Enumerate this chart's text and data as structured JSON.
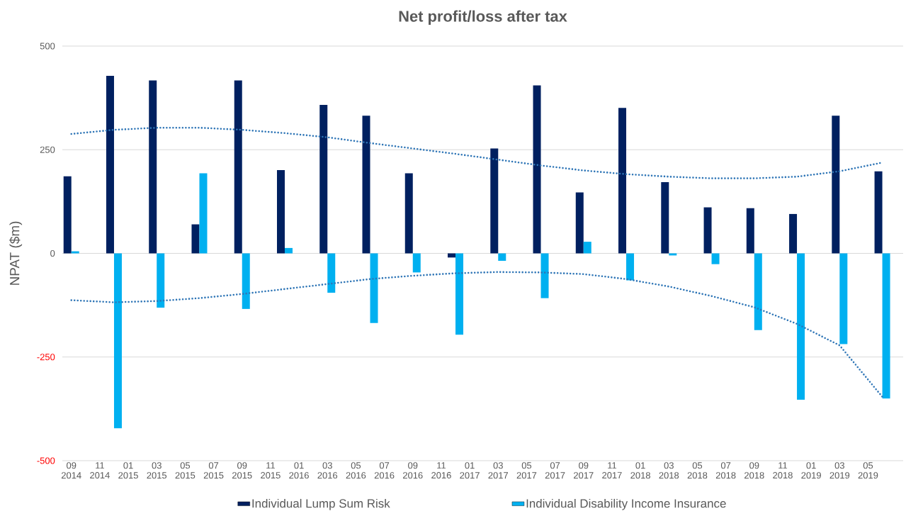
{
  "chart_data": {
    "type": "bar",
    "title": "Net profit/loss after tax",
    "ylabel": "NPAT ($m)",
    "x": [
      "2014-09",
      "2014-12",
      "2015-03",
      "2015-06",
      "2015-09",
      "2015-12",
      "2016-03",
      "2016-06",
      "2016-09",
      "2016-12",
      "2017-03",
      "2017-06",
      "2017-09",
      "2017-12",
      "2018-03",
      "2018-06",
      "2018-09",
      "2018-12",
      "2019-03",
      "2019-06"
    ],
    "series": [
      {
        "name": "Individual Lump Sum Risk",
        "color": "#002060",
        "values": [
          186,
          428,
          417,
          70,
          417,
          201,
          358,
          332,
          193,
          -10,
          253,
          405,
          147,
          351,
          172,
          111,
          109,
          95,
          332,
          198
        ]
      },
      {
        "name": "Individual Disability Income Insurance",
        "color": "#00b0f0",
        "values": [
          5,
          -422,
          -131,
          193,
          -134,
          13,
          -95,
          -168,
          -46,
          -196,
          -18,
          -108,
          28,
          -65,
          -5,
          -26,
          -185,
          -353,
          -219,
          -350
        ]
      },
      {
        "type": "line",
        "color": "#2e75b6",
        "line_style": "dotted",
        "x": [
          "2014-09",
          "2014-12",
          "2015-03",
          "2015-06",
          "2015-09",
          "2015-12",
          "2016-03",
          "2016-06",
          "2016-09",
          "2016-12",
          "2017-03",
          "2017-06",
          "2017-09",
          "2017-12",
          "2018-03",
          "2018-06",
          "2018-09",
          "2018-12",
          "2019-03",
          "2019-06"
        ],
        "values": [
          288,
          298,
          303,
          303,
          298,
          290,
          280,
          266,
          253,
          240,
          226,
          212,
          200,
          191,
          185,
          181,
          181,
          185,
          198,
          219
        ]
      },
      {
        "type": "line",
        "color": "#2e75b6",
        "line_style": "dotted",
        "x": [
          "2014-09",
          "2014-12",
          "2015-03",
          "2015-06",
          "2015-09",
          "2015-12",
          "2016-03",
          "2016-06",
          "2016-09",
          "2016-12",
          "2017-03",
          "2017-06",
          "2017-09",
          "2017-12",
          "2018-03",
          "2018-06",
          "2018-09",
          "2018-12",
          "2019-03",
          "2019-06"
        ],
        "values": [
          -113,
          -118,
          -115,
          -108,
          -98,
          -86,
          -74,
          -62,
          -54,
          -48,
          -45,
          -46,
          -50,
          -62,
          -80,
          -103,
          -130,
          -170,
          -222,
          -346
        ]
      }
    ],
    "xlim": [
      "2014-08-12",
      "2019-07-15"
    ],
    "xticks": [
      {
        "value": "2014-09",
        "label": "09 2014"
      },
      {
        "value": "2014-11",
        "label": "11 2014"
      },
      {
        "value": "2015-01",
        "label": "01 2015"
      },
      {
        "value": "2015-03",
        "label": "03 2015"
      },
      {
        "value": "2015-05",
        "label": "05 2015"
      },
      {
        "value": "2015-07",
        "label": "07 2015"
      },
      {
        "value": "2015-09",
        "label": "09 2015"
      },
      {
        "value": "2015-11",
        "label": "11 2015"
      },
      {
        "value": "2016-01",
        "label": "01 2016"
      },
      {
        "value": "2016-03",
        "label": "03 2016"
      },
      {
        "value": "2016-05",
        "label": "05 2016"
      },
      {
        "value": "2016-07",
        "label": "07 2016"
      },
      {
        "value": "2016-09",
        "label": "09 2016"
      },
      {
        "value": "2016-11",
        "label": "11 2016"
      },
      {
        "value": "2017-01",
        "label": "01 2017"
      },
      {
        "value": "2017-03",
        "label": "03 2017"
      },
      {
        "value": "2017-05",
        "label": "05 2017"
      },
      {
        "value": "2017-07",
        "label": "07 2017"
      },
      {
        "value": "2017-09",
        "label": "09 2017"
      },
      {
        "value": "2017-11",
        "label": "11 2017"
      },
      {
        "value": "2018-01",
        "label": "01 2018"
      },
      {
        "value": "2018-03",
        "label": "03 2018"
      },
      {
        "value": "2018-05",
        "label": "05 2018"
      },
      {
        "value": "2018-07",
        "label": "07 2018"
      },
      {
        "value": "2018-09",
        "label": "09 2018"
      },
      {
        "value": "2018-11",
        "label": "11 2018"
      },
      {
        "value": "2019-01",
        "label": "01 2019"
      },
      {
        "value": "2019-03",
        "label": "03 2019"
      },
      {
        "value": "2019-05",
        "label": "05 2019"
      }
    ],
    "ylim": [
      -500,
      500
    ],
    "yticks": [
      -500,
      -250,
      0,
      250,
      500
    ],
    "grid": "y",
    "legend": "bottom"
  }
}
